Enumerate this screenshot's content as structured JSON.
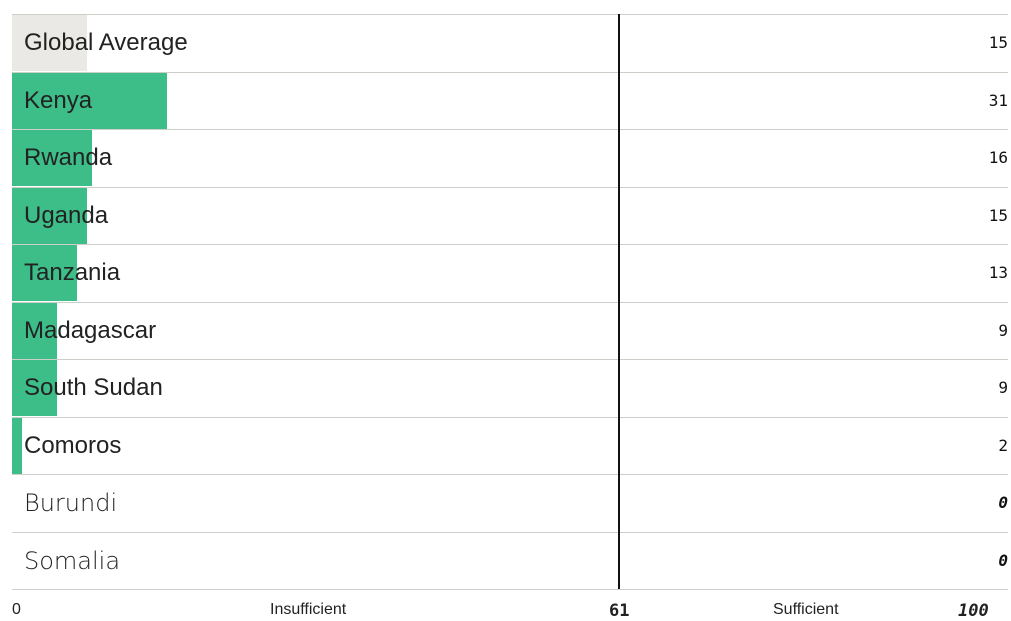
{
  "chart_data": {
    "type": "bar",
    "orientation": "horizontal",
    "categories": [
      "Global Average",
      "Kenya",
      "Rwanda",
      "Uganda",
      "Tanzania",
      "Madagascar",
      "South Sudan",
      "Comoros",
      "Burundi",
      "Somalia"
    ],
    "values": [
      15,
      31,
      16,
      15,
      13,
      9,
      9,
      2,
      0,
      0
    ],
    "value_labels": [
      "15",
      "31",
      "16",
      "15",
      "13",
      "9",
      "9",
      "2",
      "0",
      "0"
    ],
    "xlim": [
      0,
      100
    ],
    "threshold": 61,
    "threshold_label": "61",
    "axis_min_label": "0",
    "axis_max_label": "100",
    "zone_labels": [
      "Insufficient",
      "Sufficient"
    ],
    "colors": {
      "average_bar": "#ebe9e5",
      "country_bar": "#3dbd88",
      "threshold_line": "#111111",
      "row_divider": "#cfcfca"
    }
  }
}
